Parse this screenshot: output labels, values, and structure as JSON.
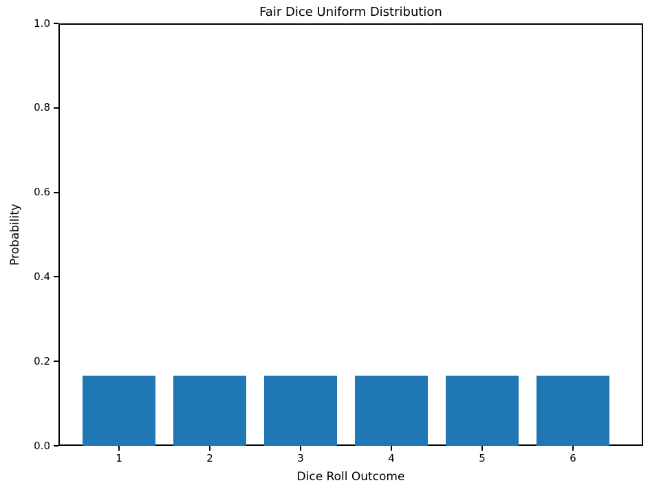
{
  "chart_data": {
    "type": "bar",
    "title": "Fair Dice Uniform Distribution",
    "xlabel": "Dice Roll Outcome",
    "ylabel": "Probability",
    "categories": [
      "1",
      "2",
      "3",
      "4",
      "5",
      "6"
    ],
    "values": [
      0.1667,
      0.1667,
      0.1667,
      0.1667,
      0.1667,
      0.1667
    ],
    "bar_color": "#1f77b4",
    "bar_width": 0.8,
    "xlim": [
      0.333,
      6.773
    ],
    "ylim": [
      0.0,
      1.0
    ],
    "yticks": [
      0.0,
      0.2,
      0.4,
      0.6,
      0.8,
      1.0
    ],
    "ytick_labels": [
      "0.0",
      "0.2",
      "0.4",
      "0.6",
      "0.8",
      "1.0"
    ],
    "grid": false,
    "legend": "none",
    "background": "#ffffff",
    "spine_color": "#000000"
  }
}
